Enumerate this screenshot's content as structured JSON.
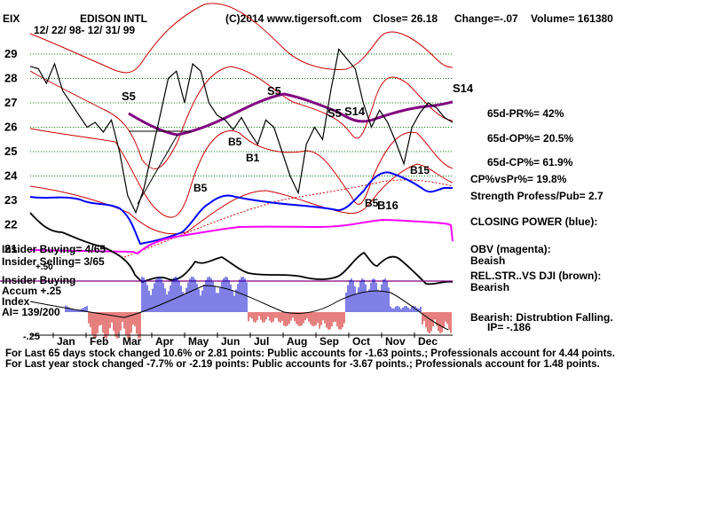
{
  "header": {
    "ticker": "EIX",
    "name": "EDISON INTL",
    "copyright": "(C)2014 www.tigersoft.com",
    "close": "Close=  26.18",
    "change": "Change=-.07",
    "volume": "Volume= 161380",
    "date_range": "12/ 22/ 98-  12/ 31/ 99"
  },
  "colors": {
    "price": "#000000",
    "bands": "#cc0000",
    "ma": "#800080",
    "closing_power": "#0000ff",
    "obv": "#ff00ff",
    "grid": "#008000",
    "accum_pos": "#0000cc",
    "accum_neg": "#cc0000"
  },
  "right_panel": {
    "pr": "65d-PR%= 42%",
    "op": "65d-OP%= 20.5%",
    "cp": "65d-CP%= 61.9%",
    "cpvspr": "CP%vsPr%=  19.8%",
    "strength": "Strength Profess/Pub= 2.7",
    "closing_power": "CLOSING POWER (blue):",
    "obv": "OBV (magenta):",
    "obv_state": "Beaish",
    "relstr": "REL.STR..VS DJI (brown):",
    "relstr_state": "Bearish",
    "bearish": "Bearish: Distrubtion Falling.",
    "ip": "IP= -.186"
  },
  "left_panel": {
    "insider_buying": "Insider Buying= 4/65",
    "insider_selling": "Insider Selling= 3/65",
    "plus50": "+.50",
    "insider_buying2": "Insider Buying",
    "accum": "Accum  +.25",
    "index": "Index",
    "ai": "AI= 139/200",
    "minus25": "-.25"
  },
  "footer": {
    "line1": "For Last 65 days stock changed  10.6% or  2.81 points:  Public accounts for -1.63 points.;  Professionals account for  4.44 points.",
    "line2": "For Last year stock changed -7.7% or -2.19 points:  Public accounts for -3.67 points.;  Professionals account for  1.48 points."
  },
  "chart_data": {
    "type": "line",
    "title": "EDISON INTL",
    "months": [
      "Jan",
      "Feb",
      "Mar",
      "Apr",
      "May",
      "Jun",
      "Jul",
      "Aug",
      "Sep",
      "Oct",
      "Nov",
      "Dec"
    ],
    "y_ticks": [
      29,
      28,
      27,
      26,
      25,
      24,
      23,
      22,
      21
    ],
    "ylim": [
      20.5,
      29.5
    ],
    "series": [
      {
        "name": "price",
        "x": [
          0,
          5,
          10,
          15,
          20,
          25,
          30,
          35,
          40,
          45,
          50,
          55,
          60,
          65,
          70,
          75,
          80,
          85,
          90,
          95,
          100,
          105,
          110,
          115,
          120,
          125,
          130,
          135,
          140,
          145,
          150,
          155,
          160,
          165,
          170,
          175,
          180,
          185,
          190,
          195,
          200,
          205,
          210,
          215,
          220,
          225,
          230,
          235,
          240,
          245,
          250,
          255,
          260
        ],
        "values": [
          28.5,
          28.4,
          27.8,
          28.6,
          27.5,
          27.0,
          26.5,
          26.0,
          26.2,
          25.8,
          26.3,
          25.0,
          23.2,
          22.5,
          23.5,
          25.0,
          26.5,
          28.0,
          28.3,
          27.0,
          28.6,
          28.3,
          27.0,
          26.5,
          26.3,
          25.9,
          26.4,
          25.8,
          25.3,
          26.3,
          26.0,
          25.0,
          24.0,
          23.3,
          25.3,
          26.0,
          25.5,
          27.5,
          29.2,
          28.8,
          28.4,
          27.0,
          26.0,
          26.7,
          26.2,
          25.4,
          24.5,
          26.0,
          26.6,
          27.0,
          26.8,
          26.4,
          26.2
        ]
      },
      {
        "name": "ma",
        "x": [
          75,
          95,
          115,
          135,
          150,
          155,
          165,
          175,
          190,
          205,
          220,
          235,
          250,
          260
        ],
        "values": [
          24.3,
          25.0,
          25.6,
          26.5,
          26.9,
          26.9,
          26.6,
          26.0,
          25.3,
          25.5,
          25.9,
          26.3,
          26.5,
          26.6
        ]
      }
    ],
    "signals": [
      "S5",
      "S5",
      "S5",
      "S14",
      "S14",
      "B5",
      "B1",
      "B5",
      "B15",
      "B5",
      "B16"
    ]
  }
}
